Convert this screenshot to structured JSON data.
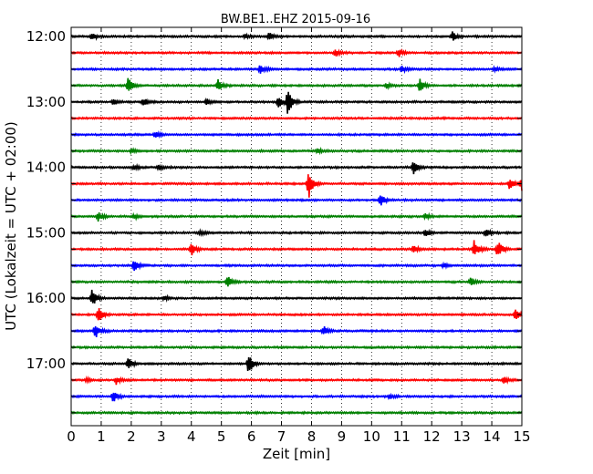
{
  "chart_data": {
    "type": "line",
    "title": "BW.BE1..EHZ 2015-09-16",
    "xlabel": "Zeit  [min]",
    "ylabel": "UTC (Lokalzeit = UTC + 02:00)",
    "xlim": [
      0,
      15
    ],
    "x_ticks": [
      "0",
      "1",
      "2",
      "3",
      "4",
      "5",
      "6",
      "7",
      "8",
      "9",
      "10",
      "11",
      "12",
      "13",
      "14",
      "15"
    ],
    "y_ticks": [
      "12:00",
      "13:00",
      "14:00",
      "15:00",
      "16:00",
      "17:00"
    ],
    "grid": "vertical-dotted",
    "trace_colors": [
      "#000000",
      "#ff0000",
      "#0000ff",
      "#008000"
    ],
    "traces": [
      {
        "start": "12:00",
        "events": [
          [
            0.7,
            0.5
          ],
          [
            5.8,
            0.3
          ],
          [
            6.6,
            0.5
          ],
          [
            12.7,
            0.6
          ]
        ]
      },
      {
        "start": "12:15",
        "events": [
          [
            8.8,
            0.4
          ],
          [
            10.9,
            0.5
          ]
        ]
      },
      {
        "start": "12:30",
        "events": [
          [
            6.3,
            0.6
          ],
          [
            11.0,
            0.4
          ],
          [
            14.1,
            0.3
          ]
        ]
      },
      {
        "start": "12:45",
        "events": [
          [
            1.9,
            1.0
          ],
          [
            4.9,
            0.8
          ],
          [
            10.5,
            0.3
          ],
          [
            11.6,
            0.9
          ]
        ]
      },
      {
        "start": "13:00",
        "events": [
          [
            1.4,
            0.4
          ],
          [
            2.4,
            0.5
          ],
          [
            4.5,
            0.4
          ],
          [
            6.9,
            0.8
          ],
          [
            7.2,
            1.7
          ]
        ]
      },
      {
        "start": "13:15",
        "events": []
      },
      {
        "start": "13:30",
        "events": [
          [
            2.8,
            0.4
          ]
        ]
      },
      {
        "start": "13:45",
        "events": [
          [
            2.0,
            0.3
          ],
          [
            8.2,
            0.3
          ]
        ]
      },
      {
        "start": "14:00",
        "events": [
          [
            2.1,
            0.3
          ],
          [
            2.9,
            0.3
          ],
          [
            11.4,
            0.8
          ]
        ]
      },
      {
        "start": "14:15",
        "events": [
          [
            7.9,
            2.0
          ],
          [
            14.6,
            0.9
          ],
          [
            15.0,
            0.8
          ]
        ]
      },
      {
        "start": "14:30",
        "events": [
          [
            10.3,
            0.7
          ]
        ]
      },
      {
        "start": "14:45",
        "events": [
          [
            0.9,
            0.6
          ],
          [
            2.1,
            0.3
          ],
          [
            11.8,
            0.3
          ]
        ]
      },
      {
        "start": "15:00",
        "events": [
          [
            4.3,
            0.3
          ],
          [
            11.8,
            0.5
          ],
          [
            13.8,
            0.6
          ]
        ]
      },
      {
        "start": "15:15",
        "events": [
          [
            4.0,
            0.8
          ],
          [
            11.4,
            0.6
          ],
          [
            13.4,
            1.2
          ],
          [
            14.2,
            1.1
          ]
        ]
      },
      {
        "start": "15:30",
        "events": [
          [
            2.1,
            0.8
          ],
          [
            12.4,
            0.3
          ]
        ]
      },
      {
        "start": "15:45",
        "events": [
          [
            5.2,
            0.9
          ],
          [
            13.3,
            0.5
          ]
        ]
      },
      {
        "start": "16:00",
        "events": [
          [
            0.7,
            1.2
          ],
          [
            3.1,
            0.3
          ]
        ]
      },
      {
        "start": "16:15",
        "events": [
          [
            0.9,
            1.1
          ],
          [
            14.8,
            0.7
          ]
        ]
      },
      {
        "start": "16:30",
        "events": [
          [
            0.8,
            1.0
          ],
          [
            8.4,
            0.6
          ]
        ]
      },
      {
        "start": "16:45",
        "events": []
      },
      {
        "start": "17:00",
        "events": [
          [
            1.9,
            0.7
          ],
          [
            5.9,
            1.4
          ]
        ]
      },
      {
        "start": "17:15",
        "events": [
          [
            0.5,
            0.3
          ],
          [
            1.5,
            0.5
          ],
          [
            14.4,
            0.4
          ]
        ]
      },
      {
        "start": "17:30",
        "events": [
          [
            1.4,
            0.8
          ],
          [
            10.6,
            0.3
          ]
        ]
      },
      {
        "start": "17:45",
        "events": []
      }
    ]
  }
}
